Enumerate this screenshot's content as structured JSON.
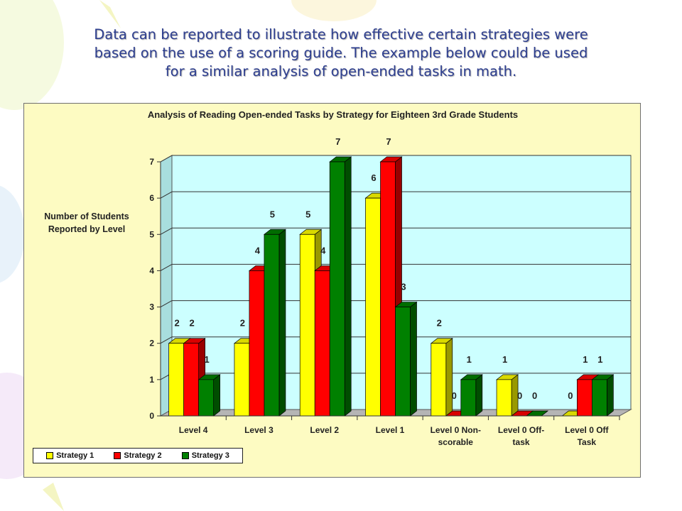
{
  "caption": {
    "line1": "Data can be reported to illustrate how effective certain strategies were",
    "line2": "based on the use of a scoring guide. The example below could be used",
    "line3": "for a similar analysis of open-ended tasks in math."
  },
  "chart_data": {
    "type": "bar",
    "style": "3d-clustered",
    "title": "Analysis of Reading Open-ended Tasks by Strategy for Eighteen 3rd Grade Students",
    "ylabel": "Number of Students Reported by Level",
    "xlabel": "",
    "ylim": [
      0,
      7
    ],
    "yticks": [
      0,
      1,
      2,
      3,
      4,
      5,
      6,
      7
    ],
    "grid": true,
    "legend_position": "bottom-left",
    "categories": [
      [
        "Level 4"
      ],
      [
        "Level 3"
      ],
      [
        "Level 2"
      ],
      [
        "Level 1"
      ],
      [
        "Level 0 Non-",
        "scorable"
      ],
      [
        "Level 0 Off-",
        "task"
      ],
      [
        "Level 0 Off",
        "Task"
      ]
    ],
    "series": [
      {
        "name": "Strategy 1",
        "color": "#ffff00",
        "values": [
          2,
          2,
          5,
          6,
          2,
          1,
          0
        ]
      },
      {
        "name": "Strategy 2",
        "color": "#ff0000",
        "values": [
          2,
          4,
          4,
          7,
          0,
          0,
          1
        ]
      },
      {
        "name": "Strategy 3",
        "color": "#008000",
        "values": [
          1,
          5,
          7,
          3,
          1,
          0,
          1
        ]
      }
    ],
    "colors": {
      "plot_background": "#ccffff",
      "chart_background": "#fdfbc2"
    }
  }
}
